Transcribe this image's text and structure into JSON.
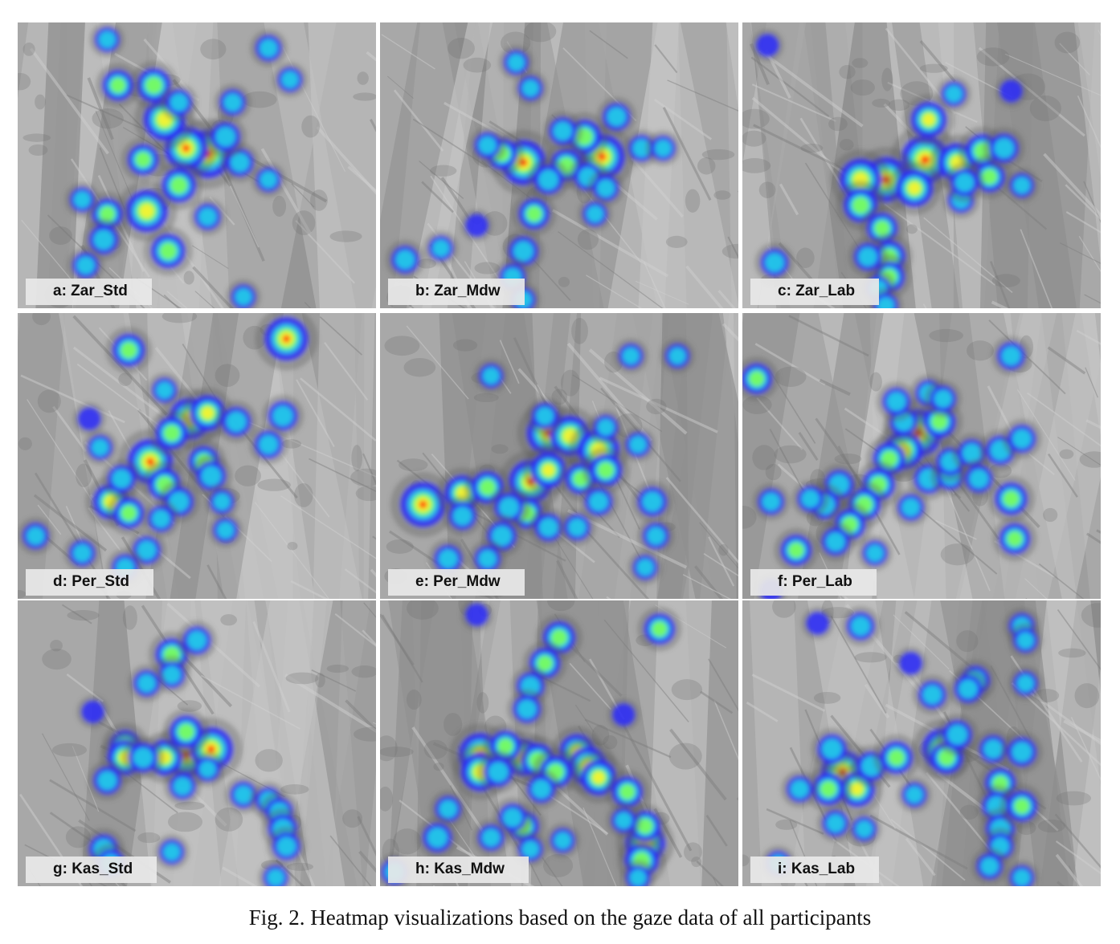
{
  "figure": {
    "caption": "Fig. 2. Heatmap visualizations based on the gaze data of all participants",
    "heat_colors": [
      "#2a2aff",
      "#20d0e8",
      "#7cff5a",
      "#f6f232",
      "#ff2a00"
    ],
    "panels": [
      {
        "label": "a: Zar_Std",
        "hotspots": [
          [
            0.53,
            0.46,
            1.0
          ],
          [
            0.47,
            0.44,
            0.85
          ],
          [
            0.41,
            0.34,
            0.8
          ],
          [
            0.36,
            0.66,
            0.8
          ],
          [
            0.45,
            0.57,
            0.55
          ],
          [
            0.38,
            0.22,
            0.55
          ],
          [
            0.28,
            0.22,
            0.45
          ],
          [
            0.42,
            0.8,
            0.55
          ],
          [
            0.25,
            0.67,
            0.45
          ],
          [
            0.35,
            0.48,
            0.45
          ],
          [
            0.24,
            0.76,
            0.4
          ],
          [
            0.62,
            0.49,
            0.35
          ],
          [
            0.58,
            0.4,
            0.4
          ],
          [
            0.19,
            0.85,
            0.3
          ],
          [
            0.7,
            0.09,
            0.3
          ],
          [
            0.6,
            0.28,
            0.3
          ],
          [
            0.53,
            0.68,
            0.3
          ],
          [
            0.63,
            0.96,
            0.25
          ],
          [
            0.25,
            0.06,
            0.25
          ],
          [
            0.18,
            0.62,
            0.25
          ],
          [
            0.45,
            0.28,
            0.3
          ],
          [
            0.7,
            0.55,
            0.25
          ],
          [
            0.76,
            0.2,
            0.25
          ]
        ]
      },
      {
        "label": "b: Zar_Mdw",
        "hotspots": [
          [
            0.4,
            0.49,
            0.9
          ],
          [
            0.62,
            0.47,
            0.9
          ],
          [
            0.57,
            0.4,
            0.55
          ],
          [
            0.52,
            0.5,
            0.5
          ],
          [
            0.34,
            0.46,
            0.45
          ],
          [
            0.47,
            0.55,
            0.4
          ],
          [
            0.43,
            0.67,
            0.45
          ],
          [
            0.4,
            0.8,
            0.4
          ],
          [
            0.51,
            0.38,
            0.35
          ],
          [
            0.58,
            0.54,
            0.35
          ],
          [
            0.66,
            0.33,
            0.35
          ],
          [
            0.3,
            0.43,
            0.3
          ],
          [
            0.63,
            0.58,
            0.3
          ],
          [
            0.07,
            0.83,
            0.35
          ],
          [
            0.17,
            0.79,
            0.25
          ],
          [
            0.37,
            0.89,
            0.3
          ],
          [
            0.38,
            0.14,
            0.25
          ],
          [
            0.42,
            0.23,
            0.25
          ],
          [
            0.73,
            0.44,
            0.3
          ],
          [
            0.79,
            0.44,
            0.25
          ],
          [
            0.6,
            0.67,
            0.25
          ],
          [
            0.27,
            0.71,
            0.2
          ],
          [
            0.4,
            0.97,
            0.25
          ]
        ]
      },
      {
        "label": "c: Zar_Lab",
        "hotspots": [
          [
            0.51,
            0.48,
            1.0
          ],
          [
            0.4,
            0.55,
            0.9
          ],
          [
            0.33,
            0.55,
            0.8
          ],
          [
            0.48,
            0.58,
            0.65
          ],
          [
            0.6,
            0.49,
            0.7
          ],
          [
            0.52,
            0.34,
            0.6
          ],
          [
            0.67,
            0.45,
            0.55
          ],
          [
            0.69,
            0.54,
            0.45
          ],
          [
            0.33,
            0.64,
            0.55
          ],
          [
            0.39,
            0.72,
            0.45
          ],
          [
            0.41,
            0.82,
            0.5
          ],
          [
            0.41,
            0.89,
            0.45
          ],
          [
            0.35,
            0.82,
            0.35
          ],
          [
            0.61,
            0.62,
            0.3
          ],
          [
            0.73,
            0.44,
            0.4
          ],
          [
            0.09,
            0.84,
            0.35
          ],
          [
            0.38,
            0.93,
            0.25
          ],
          [
            0.59,
            0.25,
            0.25
          ],
          [
            0.75,
            0.24,
            0.2
          ],
          [
            0.62,
            0.56,
            0.35
          ],
          [
            0.4,
            0.99,
            0.25
          ],
          [
            0.07,
            0.08,
            0.2
          ],
          [
            0.78,
            0.57,
            0.25
          ]
        ]
      },
      {
        "label": "d: Per_Std",
        "hotspots": [
          [
            0.37,
            0.52,
            0.9
          ],
          [
            0.48,
            0.37,
            0.8
          ],
          [
            0.53,
            0.35,
            0.6
          ],
          [
            0.41,
            0.6,
            0.5
          ],
          [
            0.52,
            0.52,
            0.45
          ],
          [
            0.43,
            0.42,
            0.5
          ],
          [
            0.26,
            0.66,
            0.6
          ],
          [
            0.31,
            0.7,
            0.45
          ],
          [
            0.45,
            0.66,
            0.4
          ],
          [
            0.54,
            0.57,
            0.4
          ],
          [
            0.61,
            0.38,
            0.4
          ],
          [
            0.74,
            0.36,
            0.4
          ],
          [
            0.7,
            0.46,
            0.35
          ],
          [
            0.75,
            0.09,
            0.85
          ],
          [
            0.31,
            0.13,
            0.5
          ],
          [
            0.29,
            0.58,
            0.35
          ],
          [
            0.23,
            0.47,
            0.25
          ],
          [
            0.4,
            0.72,
            0.3
          ],
          [
            0.36,
            0.83,
            0.35
          ],
          [
            0.05,
            0.78,
            0.3
          ],
          [
            0.18,
            0.84,
            0.3
          ],
          [
            0.3,
            0.89,
            0.3
          ],
          [
            0.58,
            0.76,
            0.25
          ],
          [
            0.41,
            0.27,
            0.25
          ],
          [
            0.57,
            0.66,
            0.25
          ],
          [
            0.2,
            0.37,
            0.2
          ]
        ]
      },
      {
        "label": "e: Per_Mdw",
        "hotspots": [
          [
            0.47,
            0.42,
            0.85
          ],
          [
            0.53,
            0.43,
            0.75
          ],
          [
            0.42,
            0.59,
            0.85
          ],
          [
            0.47,
            0.55,
            0.6
          ],
          [
            0.61,
            0.48,
            0.8
          ],
          [
            0.56,
            0.58,
            0.45
          ],
          [
            0.63,
            0.55,
            0.5
          ],
          [
            0.12,
            0.67,
            0.9
          ],
          [
            0.23,
            0.63,
            0.6
          ],
          [
            0.3,
            0.61,
            0.5
          ],
          [
            0.41,
            0.7,
            0.45
          ],
          [
            0.36,
            0.68,
            0.4
          ],
          [
            0.23,
            0.71,
            0.35
          ],
          [
            0.34,
            0.78,
            0.4
          ],
          [
            0.47,
            0.75,
            0.35
          ],
          [
            0.61,
            0.66,
            0.35
          ],
          [
            0.76,
            0.66,
            0.4
          ],
          [
            0.55,
            0.75,
            0.3
          ],
          [
            0.19,
            0.86,
            0.35
          ],
          [
            0.3,
            0.86,
            0.3
          ],
          [
            0.77,
            0.78,
            0.3
          ],
          [
            0.31,
            0.22,
            0.25
          ],
          [
            0.46,
            0.36,
            0.3
          ],
          [
            0.63,
            0.4,
            0.25
          ],
          [
            0.72,
            0.46,
            0.25
          ],
          [
            0.74,
            0.89,
            0.25
          ],
          [
            0.7,
            0.15,
            0.25
          ],
          [
            0.83,
            0.15,
            0.25
          ]
        ]
      },
      {
        "label": "f: Per_Lab",
        "hotspots": [
          [
            0.49,
            0.42,
            1.0
          ],
          [
            0.45,
            0.48,
            0.7
          ],
          [
            0.41,
            0.51,
            0.5
          ],
          [
            0.55,
            0.38,
            0.5
          ],
          [
            0.38,
            0.6,
            0.5
          ],
          [
            0.34,
            0.67,
            0.5
          ],
          [
            0.27,
            0.6,
            0.4
          ],
          [
            0.23,
            0.67,
            0.4
          ],
          [
            0.3,
            0.74,
            0.45
          ],
          [
            0.26,
            0.8,
            0.35
          ],
          [
            0.15,
            0.83,
            0.45
          ],
          [
            0.52,
            0.58,
            0.4
          ],
          [
            0.58,
            0.57,
            0.35
          ],
          [
            0.58,
            0.52,
            0.35
          ],
          [
            0.64,
            0.49,
            0.35
          ],
          [
            0.66,
            0.58,
            0.35
          ],
          [
            0.72,
            0.48,
            0.4
          ],
          [
            0.78,
            0.44,
            0.35
          ],
          [
            0.75,
            0.65,
            0.5
          ],
          [
            0.76,
            0.79,
            0.45
          ],
          [
            0.45,
            0.38,
            0.35
          ],
          [
            0.43,
            0.31,
            0.35
          ],
          [
            0.52,
            0.28,
            0.3
          ],
          [
            0.56,
            0.3,
            0.3
          ],
          [
            0.04,
            0.23,
            0.45
          ],
          [
            0.08,
            0.66,
            0.3
          ],
          [
            0.19,
            0.65,
            0.3
          ],
          [
            0.47,
            0.68,
            0.3
          ],
          [
            0.75,
            0.15,
            0.35
          ],
          [
            0.08,
            0.97,
            0.2
          ],
          [
            0.37,
            0.84,
            0.25
          ]
        ]
      },
      {
        "label": "g: Kas_Std",
        "hotspots": [
          [
            0.47,
            0.54,
            0.9
          ],
          [
            0.54,
            0.52,
            0.85
          ],
          [
            0.41,
            0.55,
            0.6
          ],
          [
            0.47,
            0.46,
            0.5
          ],
          [
            0.3,
            0.51,
            0.5
          ],
          [
            0.3,
            0.55,
            0.6
          ],
          [
            0.35,
            0.55,
            0.4
          ],
          [
            0.43,
            0.19,
            0.5
          ],
          [
            0.5,
            0.14,
            0.35
          ],
          [
            0.43,
            0.26,
            0.3
          ],
          [
            0.36,
            0.29,
            0.3
          ],
          [
            0.25,
            0.63,
            0.35
          ],
          [
            0.63,
            0.68,
            0.3
          ],
          [
            0.7,
            0.7,
            0.3
          ],
          [
            0.73,
            0.74,
            0.35
          ],
          [
            0.74,
            0.8,
            0.4
          ],
          [
            0.75,
            0.86,
            0.35
          ],
          [
            0.24,
            0.87,
            0.4
          ],
          [
            0.26,
            0.92,
            0.35
          ],
          [
            0.43,
            0.88,
            0.25
          ],
          [
            0.72,
            0.97,
            0.25
          ],
          [
            0.46,
            0.65,
            0.3
          ],
          [
            0.21,
            0.39,
            0.2
          ],
          [
            0.53,
            0.59,
            0.25
          ]
        ]
      },
      {
        "label": "h: Kas_Mdw",
        "hotspots": [
          [
            0.28,
            0.54,
            0.85
          ],
          [
            0.28,
            0.6,
            0.7
          ],
          [
            0.4,
            0.55,
            0.65
          ],
          [
            0.44,
            0.56,
            0.55
          ],
          [
            0.55,
            0.53,
            0.6
          ],
          [
            0.58,
            0.58,
            0.7
          ],
          [
            0.61,
            0.62,
            0.6
          ],
          [
            0.49,
            0.6,
            0.5
          ],
          [
            0.35,
            0.51,
            0.45
          ],
          [
            0.33,
            0.6,
            0.4
          ],
          [
            0.45,
            0.66,
            0.35
          ],
          [
            0.5,
            0.13,
            0.5
          ],
          [
            0.46,
            0.22,
            0.45
          ],
          [
            0.42,
            0.3,
            0.35
          ],
          [
            0.41,
            0.38,
            0.35
          ],
          [
            0.78,
            0.1,
            0.45
          ],
          [
            0.74,
            0.85,
            0.75
          ],
          [
            0.73,
            0.91,
            0.55
          ],
          [
            0.74,
            0.79,
            0.45
          ],
          [
            0.69,
            0.67,
            0.45
          ],
          [
            0.19,
            0.73,
            0.3
          ],
          [
            0.4,
            0.79,
            0.45
          ],
          [
            0.37,
            0.76,
            0.35
          ],
          [
            0.16,
            0.83,
            0.4
          ],
          [
            0.31,
            0.83,
            0.3
          ],
          [
            0.42,
            0.87,
            0.25
          ],
          [
            0.51,
            0.84,
            0.25
          ],
          [
            0.68,
            0.77,
            0.25
          ],
          [
            0.72,
            0.97,
            0.25
          ],
          [
            0.04,
            0.95,
            0.3
          ],
          [
            0.27,
            0.05,
            0.2
          ],
          [
            0.68,
            0.4,
            0.2
          ]
        ]
      },
      {
        "label": "i: Kas_Lab",
        "hotspots": [
          [
            0.28,
            0.6,
            0.85
          ],
          [
            0.32,
            0.66,
            0.6
          ],
          [
            0.24,
            0.66,
            0.5
          ],
          [
            0.25,
            0.52,
            0.4
          ],
          [
            0.36,
            0.58,
            0.4
          ],
          [
            0.43,
            0.55,
            0.5
          ],
          [
            0.56,
            0.52,
            0.8
          ],
          [
            0.57,
            0.55,
            0.5
          ],
          [
            0.6,
            0.47,
            0.4
          ],
          [
            0.53,
            0.33,
            0.35
          ],
          [
            0.65,
            0.28,
            0.4
          ],
          [
            0.63,
            0.31,
            0.35
          ],
          [
            0.7,
            0.52,
            0.35
          ],
          [
            0.78,
            0.53,
            0.4
          ],
          [
            0.72,
            0.64,
            0.45
          ],
          [
            0.71,
            0.72,
            0.4
          ],
          [
            0.72,
            0.8,
            0.4
          ],
          [
            0.78,
            0.72,
            0.45
          ],
          [
            0.72,
            0.86,
            0.3
          ],
          [
            0.69,
            0.93,
            0.3
          ],
          [
            0.26,
            0.78,
            0.3
          ],
          [
            0.16,
            0.66,
            0.3
          ],
          [
            0.34,
            0.8,
            0.25
          ],
          [
            0.48,
            0.68,
            0.25
          ],
          [
            0.33,
            0.09,
            0.35
          ],
          [
            0.78,
            0.09,
            0.3
          ],
          [
            0.79,
            0.14,
            0.25
          ],
          [
            0.79,
            0.29,
            0.25
          ],
          [
            0.21,
            0.08,
            0.2
          ],
          [
            0.47,
            0.22,
            0.2
          ],
          [
            0.1,
            0.92,
            0.25
          ],
          [
            0.78,
            0.97,
            0.25
          ]
        ]
      }
    ]
  }
}
